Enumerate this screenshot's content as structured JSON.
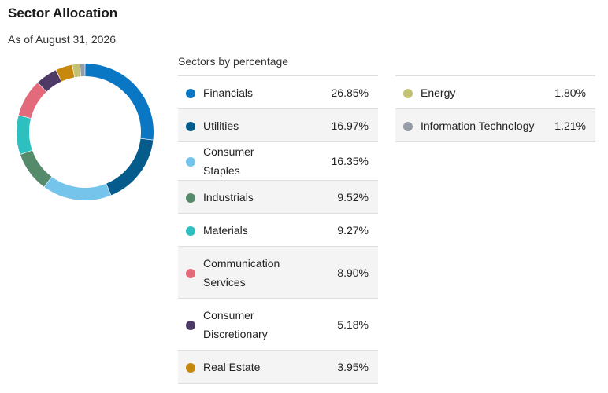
{
  "header": {
    "title": "Sector Allocation",
    "as_of": "As of August 31, 2026"
  },
  "legend_title": "Sectors by percentage",
  "chart_data": {
    "type": "pie",
    "variant": "donut",
    "title": "Sector Allocation",
    "subtitle": "As of August 31, 2026",
    "legend_title": "Sectors by percentage",
    "legend_placement": "right",
    "slices": [
      {
        "name": "Financials",
        "value": 26.85,
        "label": "26.85%",
        "color": "#0a77c4"
      },
      {
        "name": "Utilities",
        "value": 16.97,
        "label": "16.97%",
        "color": "#045b8c"
      },
      {
        "name": "Consumer Staples",
        "value": 16.35,
        "label": "16.35%",
        "color": "#74c4ec"
      },
      {
        "name": "Industrials",
        "value": 9.52,
        "label": "9.52%",
        "color": "#558b6b"
      },
      {
        "name": "Materials",
        "value": 9.27,
        "label": "9.27%",
        "color": "#2ebfc0"
      },
      {
        "name": "Communication Services",
        "value": 8.9,
        "label": "8.90%",
        "color": "#e26a7a"
      },
      {
        "name": "Consumer Discretionary",
        "value": 5.18,
        "label": "5.18%",
        "color": "#4e3a66"
      },
      {
        "name": "Real Estate",
        "value": 3.95,
        "label": "3.95%",
        "color": "#c7880e"
      },
      {
        "name": "Energy",
        "value": 1.8,
        "label": "1.80%",
        "color": "#c2c273"
      },
      {
        "name": "Information Technology",
        "value": 1.21,
        "label": "1.21%",
        "color": "#969ca6"
      }
    ]
  }
}
